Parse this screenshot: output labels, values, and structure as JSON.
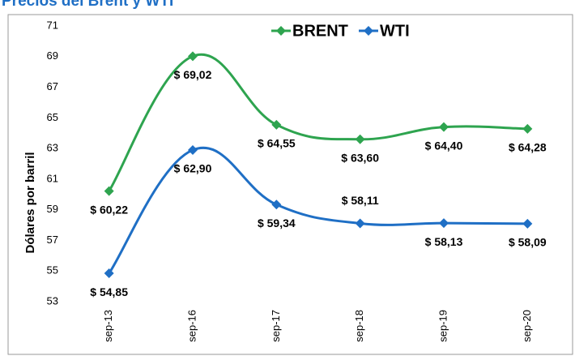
{
  "chart_data": {
    "type": "line",
    "title": "Precios del Brent y WTI",
    "y_label": "Dólares por barril",
    "categories": [
      "sep-13",
      "sep-16",
      "sep-17",
      "sep-18",
      "sep-19",
      "sep-20"
    ],
    "series": [
      {
        "name": "BRENT",
        "color": "#2ea44f",
        "values": [
          60.22,
          69.02,
          64.55,
          63.6,
          64.4,
          64.28
        ],
        "value_labels": [
          "$ 60,22",
          "$ 69,02",
          "$ 64,55",
          "$ 63,60",
          "$ 64,40",
          "$ 64,28"
        ]
      },
      {
        "name": "WTI",
        "color": "#1f6fc5",
        "values": [
          54.85,
          62.9,
          59.34,
          58.11,
          58.13,
          58.09
        ],
        "value_labels": [
          "$ 54,85",
          "$ 62,90",
          "$ 59,34",
          "$ 58,11",
          "$ 58,13",
          "$ 58,09"
        ]
      }
    ],
    "ylim": [
      53,
      71
    ],
    "yticks": [
      53,
      55,
      57,
      59,
      61,
      63,
      65,
      67,
      69,
      71
    ],
    "grid": false,
    "legend": "top"
  }
}
